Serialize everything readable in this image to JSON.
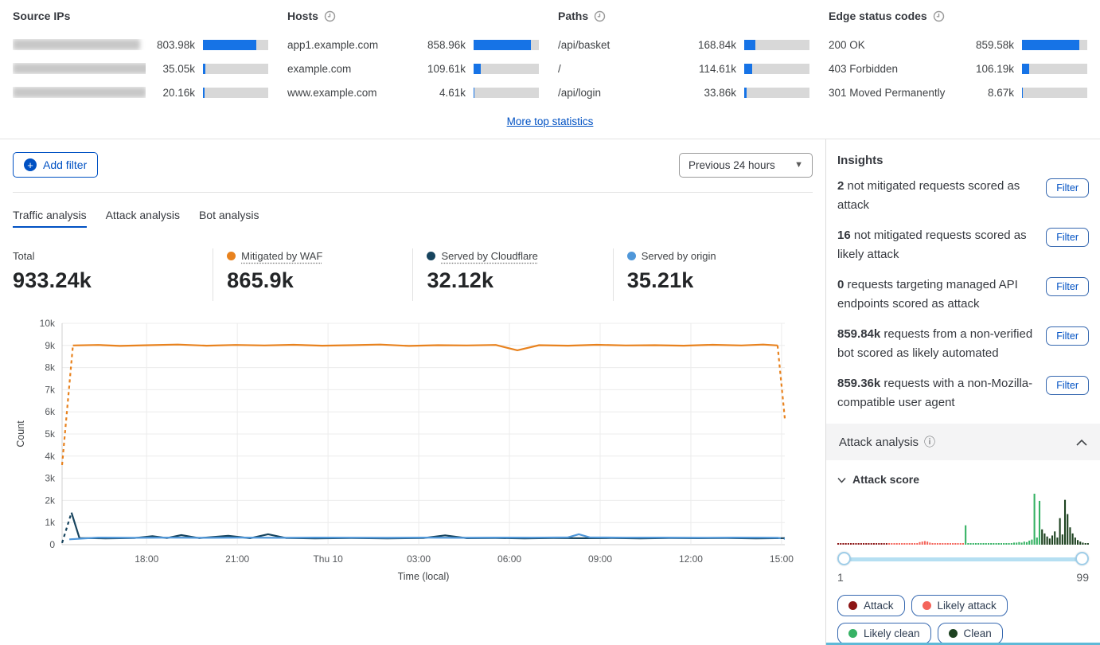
{
  "colors": {
    "bar_fill": "#1673e6",
    "link_blue": "#0051c3",
    "waf_orange": "#e8821e",
    "cloudflare_navy": "#17445e",
    "origin_blue": "#4f97d9",
    "attack": "#8c1515",
    "likely_attack": "#f4645a",
    "likely_clean": "#36b264",
    "clean": "#1d4220"
  },
  "top_stats": {
    "global_max": 859580,
    "columns": [
      {
        "title": "Source IPs",
        "has_clock": false,
        "rows": [
          {
            "label": "",
            "redacted": true,
            "value": "803.98k",
            "value_num": 803980
          },
          {
            "label": "",
            "redacted": true,
            "value": "35.05k",
            "value_num": 35050
          },
          {
            "label": "",
            "redacted": true,
            "value": "20.16k",
            "value_num": 20160
          }
        ]
      },
      {
        "title": "Hosts",
        "has_clock": true,
        "rows": [
          {
            "label": "app1.example.com",
            "redacted": false,
            "value": "858.96k",
            "value_num": 858960
          },
          {
            "label": "example.com",
            "redacted": false,
            "value": "109.61k",
            "value_num": 109610
          },
          {
            "label": "www.example.com",
            "redacted": false,
            "value": "4.61k",
            "value_num": 4610
          }
        ]
      },
      {
        "title": "Paths",
        "has_clock": true,
        "rows": [
          {
            "label": "/api/basket",
            "redacted": false,
            "value": "168.84k",
            "value_num": 168840
          },
          {
            "label": "/",
            "redacted": false,
            "value": "114.61k",
            "value_num": 114610
          },
          {
            "label": "/api/login",
            "redacted": false,
            "value": "33.86k",
            "value_num": 33860
          }
        ]
      },
      {
        "title": "Edge status codes",
        "has_clock": true,
        "rows": [
          {
            "label": "200 OK",
            "redacted": false,
            "value": "859.58k",
            "value_num": 859580
          },
          {
            "label": "403 Forbidden",
            "redacted": false,
            "value": "106.19k",
            "value_num": 106190
          },
          {
            "label": "301 Moved Permanently",
            "redacted": false,
            "value": "8.67k",
            "value_num": 8670
          }
        ]
      }
    ]
  },
  "more_link": "More top statistics",
  "toolbar": {
    "add_filter": "Add filter",
    "time_range": "Previous 24 hours"
  },
  "tabs": [
    {
      "label": "Traffic analysis",
      "active": true
    },
    {
      "label": "Attack analysis",
      "active": false
    },
    {
      "label": "Bot analysis",
      "active": false
    }
  ],
  "summary": [
    {
      "label": "Total",
      "value": "933.24k",
      "dot": null,
      "underline": false
    },
    {
      "label": "Mitigated by WAF",
      "value": "865.9k",
      "dot": "#e8821e",
      "underline": true
    },
    {
      "label": "Served by Cloudflare",
      "value": "32.12k",
      "dot": "#17445e",
      "underline": true
    },
    {
      "label": "Served by origin",
      "value": "35.21k",
      "dot": "#4f97d9",
      "underline": false
    }
  ],
  "chart_data": {
    "type": "line",
    "ylabel": "Count",
    "xlabel": "Time (local)",
    "ylim": [
      0,
      10000
    ],
    "grid": true,
    "y_ticks": [
      "0",
      "1k",
      "2k",
      "3k",
      "4k",
      "5k",
      "6k",
      "7k",
      "8k",
      "9k",
      "10k"
    ],
    "x_ticks": [
      {
        "pos": 0.117,
        "label": "18:00"
      },
      {
        "pos": 0.2425,
        "label": "21:00"
      },
      {
        "pos": 0.368,
        "label": "Thu 10"
      },
      {
        "pos": 0.4935,
        "label": "03:00"
      },
      {
        "pos": 0.619,
        "label": "06:00"
      },
      {
        "pos": 0.7445,
        "label": "09:00"
      },
      {
        "pos": 0.87,
        "label": "12:00"
      },
      {
        "pos": 0.9955,
        "label": "15:00"
      }
    ],
    "series": [
      {
        "name": "Mitigated by WAF",
        "color": "#e8821e",
        "dash_first": true,
        "dash_last": true,
        "points": [
          [
            0,
            3600
          ],
          [
            0.015,
            9000
          ],
          [
            0.05,
            9020
          ],
          [
            0.08,
            8980
          ],
          [
            0.12,
            9010
          ],
          [
            0.16,
            9040
          ],
          [
            0.2,
            8990
          ],
          [
            0.24,
            9020
          ],
          [
            0.28,
            9000
          ],
          [
            0.32,
            9030
          ],
          [
            0.36,
            8990
          ],
          [
            0.4,
            9010
          ],
          [
            0.44,
            9040
          ],
          [
            0.48,
            8980
          ],
          [
            0.52,
            9010
          ],
          [
            0.56,
            9000
          ],
          [
            0.6,
            9020
          ],
          [
            0.63,
            8780
          ],
          [
            0.66,
            9010
          ],
          [
            0.7,
            8990
          ],
          [
            0.74,
            9030
          ],
          [
            0.78,
            9000
          ],
          [
            0.82,
            9010
          ],
          [
            0.86,
            8990
          ],
          [
            0.9,
            9030
          ],
          [
            0.94,
            9000
          ],
          [
            0.97,
            9040
          ],
          [
            0.99,
            9000
          ],
          [
            1,
            5700
          ]
        ]
      },
      {
        "name": "Served by Cloudflare",
        "color": "#17445e",
        "dash_first": true,
        "dash_last": false,
        "points": [
          [
            0,
            80
          ],
          [
            0.013,
            1450
          ],
          [
            0.024,
            300
          ],
          [
            0.06,
            285
          ],
          [
            0.1,
            300
          ],
          [
            0.125,
            385
          ],
          [
            0.145,
            300
          ],
          [
            0.165,
            430
          ],
          [
            0.19,
            295
          ],
          [
            0.23,
            400
          ],
          [
            0.26,
            290
          ],
          [
            0.285,
            470
          ],
          [
            0.31,
            300
          ],
          [
            0.35,
            285
          ],
          [
            0.4,
            300
          ],
          [
            0.45,
            285
          ],
          [
            0.5,
            300
          ],
          [
            0.53,
            420
          ],
          [
            0.56,
            290
          ],
          [
            0.6,
            300
          ],
          [
            0.64,
            285
          ],
          [
            0.68,
            300
          ],
          [
            0.72,
            290
          ],
          [
            0.76,
            300
          ],
          [
            0.8,
            285
          ],
          [
            0.84,
            300
          ],
          [
            0.88,
            290
          ],
          [
            0.92,
            300
          ],
          [
            0.96,
            285
          ],
          [
            1,
            295
          ]
        ]
      },
      {
        "name": "Served by origin",
        "color": "#4f97d9",
        "dash_first": false,
        "dash_last": true,
        "points": [
          [
            0.01,
            240
          ],
          [
            0.05,
            320
          ],
          [
            0.1,
            310
          ],
          [
            0.15,
            320
          ],
          [
            0.2,
            310
          ],
          [
            0.25,
            320
          ],
          [
            0.3,
            310
          ],
          [
            0.35,
            320
          ],
          [
            0.4,
            315
          ],
          [
            0.45,
            310
          ],
          [
            0.5,
            320
          ],
          [
            0.55,
            310
          ],
          [
            0.6,
            320
          ],
          [
            0.65,
            315
          ],
          [
            0.7,
            330
          ],
          [
            0.715,
            470
          ],
          [
            0.73,
            330
          ],
          [
            0.78,
            315
          ],
          [
            0.83,
            320
          ],
          [
            0.88,
            310
          ],
          [
            0.93,
            320
          ],
          [
            0.97,
            315
          ],
          [
            0.99,
            310
          ],
          [
            1,
            260
          ]
        ]
      }
    ]
  },
  "insights": {
    "title": "Insights",
    "filter_label": "Filter",
    "items": [
      {
        "num": "2",
        "text": "not mitigated requests scored as attack"
      },
      {
        "num": "16",
        "text": "not mitigated requests scored as likely attack"
      },
      {
        "num": "0",
        "text": "requests targeting managed API endpoints scored as attack"
      },
      {
        "num": "859.84k",
        "text": "requests from a non-verified bot scored as likely automated"
      },
      {
        "num": "859.36k",
        "text": "requests with a non-Mozilla-compatible user agent"
      }
    ]
  },
  "attack_analysis": {
    "title": "Attack analysis",
    "subsection": "Attack score",
    "slider_min": "1",
    "slider_max": "99",
    "histogram": {
      "type": "bar",
      "x_range": [
        1,
        99
      ],
      "ranges": [
        {
          "from": 1,
          "to": 20,
          "name": "Attack",
          "color": "#8c1515"
        },
        {
          "from": 21,
          "to": 50,
          "name": "Likely attack",
          "color": "#f4645a"
        },
        {
          "from": 51,
          "to": 80,
          "name": "Likely clean",
          "color": "#36b264"
        },
        {
          "from": 81,
          "to": 99,
          "name": "Clean",
          "color": "#1d4220"
        }
      ],
      "values": [
        3,
        2,
        3,
        2,
        3,
        3,
        2,
        3,
        2,
        3,
        2,
        3,
        3,
        2,
        3,
        2,
        3,
        2,
        3,
        3,
        2,
        3,
        2,
        2,
        3,
        2,
        3,
        2,
        3,
        2,
        2,
        3,
        5,
        6,
        7,
        6,
        4,
        3,
        2,
        3,
        2,
        3,
        2,
        2,
        3,
        2,
        3,
        2,
        2,
        3,
        38,
        3,
        2,
        3,
        2,
        2,
        3,
        2,
        3,
        2,
        2,
        3,
        2,
        3,
        2,
        3,
        2,
        3,
        3,
        4,
        4,
        5,
        4,
        6,
        5,
        8,
        10,
        100,
        14,
        86,
        30,
        22,
        16,
        12,
        18,
        26,
        14,
        52,
        20,
        88,
        60,
        34,
        22,
        14,
        9,
        6,
        4,
        3,
        3
      ]
    }
  },
  "legend": [
    {
      "label": "Attack",
      "color": "#8c1515"
    },
    {
      "label": "Likely attack",
      "color": "#f4645a"
    },
    {
      "label": "Likely clean",
      "color": "#36b264"
    },
    {
      "label": "Clean",
      "color": "#1d4220"
    }
  ]
}
